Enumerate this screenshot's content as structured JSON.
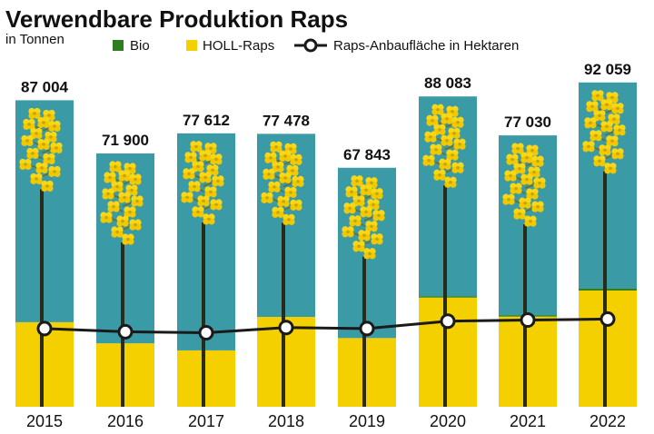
{
  "chart_data": {
    "type": "bar",
    "title": "Verwendbare Produktion Raps",
    "subtitle": "in Tonnen",
    "categories": [
      "2015",
      "2016",
      "2017",
      "2018",
      "2019",
      "2020",
      "2021",
      "2022"
    ],
    "total_labels": [
      "87 004",
      "71 900",
      "77 612",
      "77 478",
      "67 843",
      "88 083",
      "77 030",
      "92 059"
    ],
    "totals": [
      87004,
      71900,
      77612,
      77478,
      67843,
      88083,
      77030,
      92059
    ],
    "series": [
      {
        "name": "Bio",
        "color": "#2e7d1e",
        "values": [
          0,
          0,
          0,
          0,
          0,
          400,
          400,
          600
        ]
      },
      {
        "name": "HOLL-Raps",
        "color": "#f5d000",
        "values": [
          24000,
          18000,
          16000,
          25500,
          19500,
          31000,
          25600,
          33000
        ]
      },
      {
        "name": "",
        "color": "#3a9aa6",
        "values": [
          63004,
          53900,
          61612,
          51978,
          48343,
          56683,
          51030,
          58459
        ]
      }
    ],
    "line": {
      "name": "Raps-Anbaufläche in Hektaren",
      "color": "#1a1a1a",
      "relative_values": [
        0.74,
        0.71,
        0.7,
        0.75,
        0.74,
        0.81,
        0.82,
        0.83
      ]
    },
    "ylim": [
      0,
      100000
    ],
    "legend_position": "top-right",
    "grid": false
  }
}
